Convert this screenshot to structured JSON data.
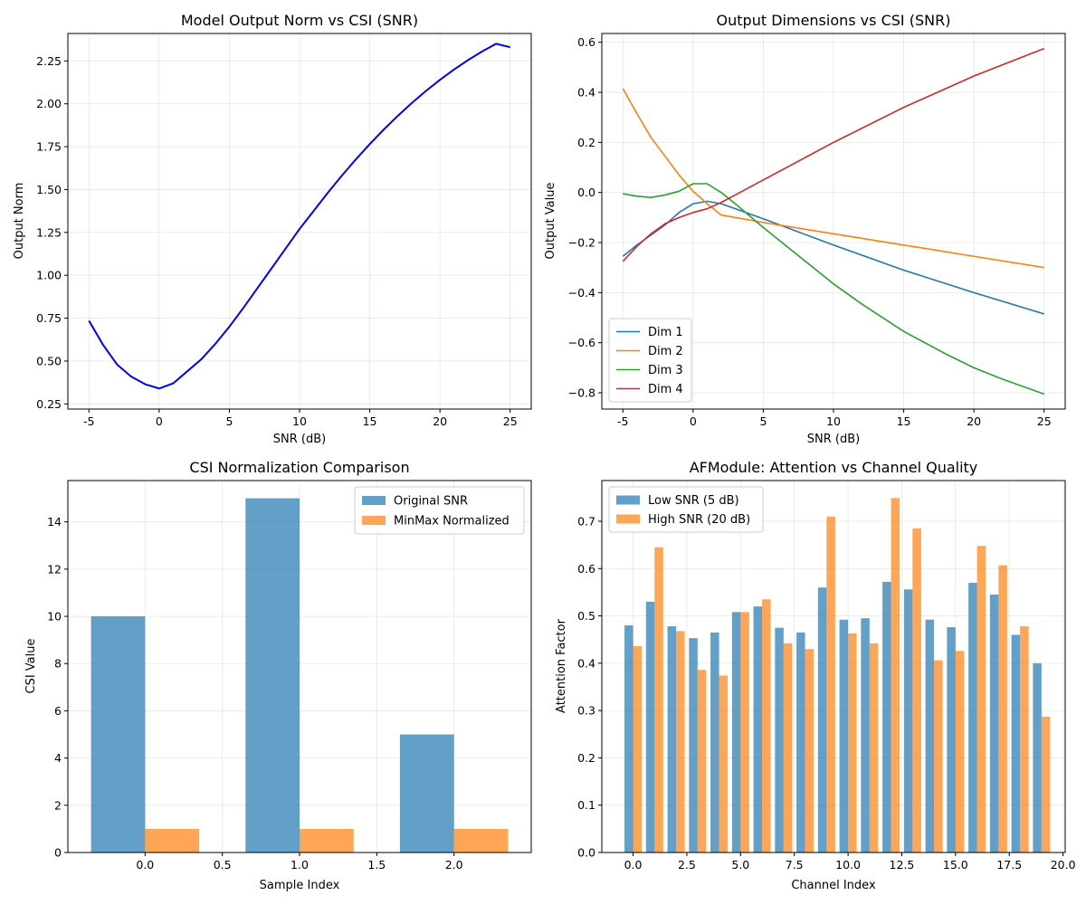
{
  "chart_data": [
    {
      "type": "line",
      "title": "Model Output Norm vs CSI (SNR)",
      "xlabel": "SNR (dB)",
      "ylabel": "Output Norm",
      "xlim": [
        -6.5,
        26.5
      ],
      "ylim": [
        0.22,
        2.41
      ],
      "xticks": [
        -5,
        0,
        5,
        10,
        15,
        20,
        25
      ],
      "yticks": [
        0.25,
        0.5,
        0.75,
        1.0,
        1.25,
        1.5,
        1.75,
        2.0,
        2.25
      ],
      "ytick_decimals": 2,
      "grid": true,
      "series": [
        {
          "color": "#0000ff",
          "x": [
            -5,
            -4,
            -3,
            -2,
            -1,
            0,
            1,
            2,
            3,
            4,
            5,
            6,
            7,
            8,
            9,
            10,
            11,
            12,
            13,
            14,
            15,
            16,
            17,
            18,
            19,
            20,
            21,
            22,
            23,
            24,
            25
          ],
          "y": [
            0.735,
            0.595,
            0.48,
            0.41,
            0.365,
            0.34,
            0.37,
            0.44,
            0.51,
            0.6,
            0.7,
            0.81,
            0.925,
            1.04,
            1.155,
            1.27,
            1.375,
            1.48,
            1.58,
            1.675,
            1.765,
            1.85,
            1.93,
            2.005,
            2.075,
            2.14,
            2.2,
            2.255,
            2.305,
            2.35,
            2.33
          ]
        }
      ]
    },
    {
      "type": "line",
      "title": "Output Dimensions vs CSI (SNR)",
      "xlabel": "SNR (dB)",
      "ylabel": "Output Value",
      "xlim": [
        -6.5,
        26.5
      ],
      "ylim": [
        -0.865,
        0.635
      ],
      "xticks": [
        -5,
        0,
        5,
        10,
        15,
        20,
        25
      ],
      "yticks": [
        -0.8,
        -0.6,
        -0.4,
        -0.2,
        0.0,
        0.2,
        0.4,
        0.6
      ],
      "ytick_decimals": 1,
      "grid": true,
      "legend": "bottom-left",
      "series": [
        {
          "name": "Dim 1",
          "color": "#1f77b4",
          "x": [
            -5,
            -4,
            -3,
            -2,
            -1,
            0,
            1,
            2,
            3,
            5,
            10,
            15,
            20,
            25
          ],
          "y": [
            -0.255,
            -0.21,
            -0.17,
            -0.13,
            -0.08,
            -0.045,
            -0.035,
            -0.045,
            -0.065,
            -0.105,
            -0.21,
            -0.31,
            -0.4,
            -0.485
          ]
        },
        {
          "name": "Dim 2",
          "color": "#ff7f0e",
          "x": [
            -5,
            -4,
            -3,
            -2,
            -1,
            0,
            1,
            2,
            3,
            5,
            10,
            15,
            20,
            25
          ],
          "y": [
            0.415,
            0.315,
            0.22,
            0.145,
            0.07,
            0.005,
            -0.045,
            -0.09,
            -0.1,
            -0.12,
            -0.165,
            -0.21,
            -0.255,
            -0.3
          ]
        },
        {
          "name": "Dim 3",
          "color": "#2ca02c",
          "x": [
            -5,
            -4,
            -3,
            -2,
            -1,
            0,
            1,
            2,
            3,
            5,
            8,
            10,
            12,
            15,
            18,
            20,
            22,
            25
          ],
          "y": [
            -0.005,
            -0.015,
            -0.02,
            -0.01,
            0.005,
            0.035,
            0.035,
            0.0,
            -0.045,
            -0.14,
            -0.275,
            -0.365,
            -0.445,
            -0.555,
            -0.645,
            -0.7,
            -0.745,
            -0.805
          ]
        },
        {
          "name": "Dim 4",
          "color": "#d62728",
          "x": [
            -5,
            -4,
            -3,
            -2,
            -1,
            0,
            1,
            2,
            3,
            5,
            10,
            15,
            20,
            25
          ],
          "y": [
            -0.275,
            -0.215,
            -0.165,
            -0.125,
            -0.1,
            -0.08,
            -0.065,
            -0.04,
            -0.01,
            0.05,
            0.2,
            0.34,
            0.465,
            0.575
          ]
        }
      ]
    },
    {
      "type": "bar",
      "title": "CSI Normalization Comparison",
      "xlabel": "Sample Index",
      "ylabel": "CSI Value",
      "xlim": [
        -0.5,
        2.5
      ],
      "ylim": [
        0,
        15.75
      ],
      "xticks": [
        0.0,
        0.5,
        1.0,
        1.5,
        2.0
      ],
      "xtick_decimals": 1,
      "yticks": [
        0,
        2,
        4,
        6,
        8,
        10,
        12,
        14
      ],
      "ytick_decimals": 0,
      "grid": true,
      "legend": "top-right",
      "bar_width": 0.35,
      "x": [
        0,
        1,
        2
      ],
      "series": [
        {
          "name": "Original SNR",
          "color": "#1f77b4",
          "values": [
            10,
            15,
            5
          ]
        },
        {
          "name": "MinMax Normalized",
          "color": "#ff7f0e",
          "values": [
            1,
            1,
            1
          ]
        }
      ]
    },
    {
      "type": "bar",
      "title": "AFModule: Attention vs Channel Quality",
      "xlabel": "Channel Index",
      "ylabel": "Attention Factor",
      "xlim": [
        -1.455,
        20.1
      ],
      "ylim": [
        0,
        0.786
      ],
      "xticks": [
        0.0,
        2.5,
        5.0,
        7.5,
        10.0,
        12.5,
        15.0,
        17.5,
        20.0
      ],
      "xtick_decimals": 1,
      "yticks": [
        0.0,
        0.1,
        0.2,
        0.3,
        0.4,
        0.5,
        0.6,
        0.7
      ],
      "ytick_decimals": 1,
      "grid": true,
      "legend": "top-left",
      "bar_width": 0.4,
      "x": [
        0,
        1,
        2,
        3,
        4,
        5,
        6,
        7,
        8,
        9,
        10,
        11,
        12,
        13,
        14,
        15,
        16,
        17,
        18,
        19
      ],
      "series": [
        {
          "name": "Low SNR (5 dB)",
          "color": "#1f77b4",
          "values": [
            0.48,
            0.53,
            0.478,
            0.453,
            0.465,
            0.508,
            0.52,
            0.475,
            0.465,
            0.56,
            0.492,
            0.495,
            0.572,
            0.556,
            0.492,
            0.476,
            0.57,
            0.545,
            0.46,
            0.4
          ]
        },
        {
          "name": "High SNR (20 dB)",
          "color": "#ff7f0e",
          "values": [
            0.436,
            0.645,
            0.468,
            0.386,
            0.374,
            0.508,
            0.535,
            0.442,
            0.43,
            0.71,
            0.463,
            0.442,
            0.749,
            0.685,
            0.406,
            0.426,
            0.648,
            0.607,
            0.478,
            0.287
          ]
        }
      ]
    }
  ]
}
